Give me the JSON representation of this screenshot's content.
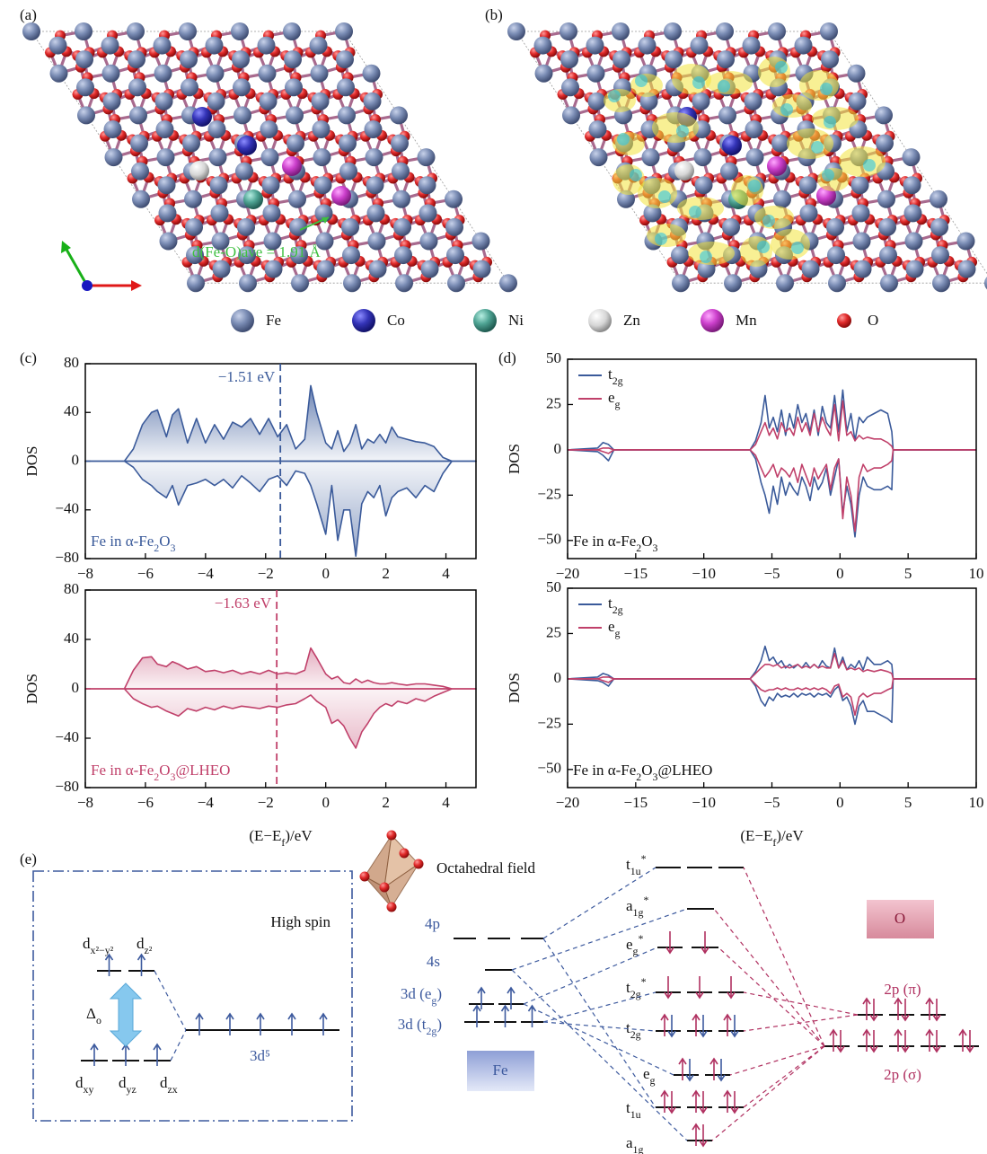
{
  "panel_labels": [
    "(a)",
    "(b)",
    "(c)",
    "(d)",
    "(e)"
  ],
  "structure": {
    "annotation": "d(Fe-O)ave = 1.91 Å",
    "legend": [
      "Fe",
      "Co",
      "Ni",
      "Zn",
      "Mn",
      "O"
    ]
  },
  "chart_data": [
    {
      "type": "area",
      "ylabel": "DOS",
      "annotation": "Fe in α-Fe2O3",
      "marker": {
        "value": -1.51,
        "label": "−1.51 eV"
      },
      "xlim": [
        -8,
        5
      ],
      "ylim": [
        -80,
        80
      ],
      "xticks": [
        {
          "value": -8,
          "label": "−8"
        },
        {
          "value": -6,
          "label": "−6"
        },
        {
          "value": -4,
          "label": "−4"
        },
        {
          "value": -2,
          "label": "−2"
        },
        0,
        2,
        4
      ],
      "yticks": [
        {
          "value": -80,
          "label": "−80"
        },
        {
          "value": -40,
          "label": "−40"
        },
        0,
        40,
        80
      ],
      "x": [
        -8,
        -6.7,
        -6.4,
        -6.1,
        -5.8,
        -5.6,
        -5.3,
        -5.1,
        -4.9,
        -4.6,
        -4.3,
        -4,
        -3.7,
        -3.4,
        -3.1,
        -2.8,
        -2.5,
        -2.2,
        -1.9,
        -1.6,
        -1.3,
        -1,
        -0.7,
        -0.5,
        -0.3,
        0,
        0.2,
        0.4,
        0.6,
        0.8,
        1,
        1.2,
        1.4,
        1.6,
        1.8,
        2,
        2.2,
        2.4,
        2.7,
        3,
        3.3,
        3.6,
        3.9,
        4.2,
        5
      ],
      "series": [
        {
          "color": "#3a5a9a",
          "values": [
            0,
            0,
            10,
            30,
            40,
            42,
            20,
            38,
            43,
            15,
            35,
            15,
            30,
            18,
            32,
            28,
            35,
            22,
            35,
            20,
            30,
            10,
            18,
            62,
            40,
            15,
            10,
            25,
            8,
            15,
            30,
            10,
            18,
            15,
            22,
            15,
            28,
            20,
            18,
            16,
            15,
            12,
            3,
            0,
            0
          ]
        },
        {
          "color": "#3a5a9a",
          "values": [
            0,
            0,
            -5,
            -15,
            -20,
            -25,
            -30,
            -20,
            -36,
            -20,
            -18,
            -15,
            -20,
            -15,
            -22,
            -12,
            -18,
            -25,
            -15,
            -12,
            -20,
            -8,
            -10,
            -20,
            -35,
            -60,
            -20,
            -65,
            -40,
            -40,
            -78,
            -35,
            -25,
            -30,
            -20,
            -45,
            -30,
            -25,
            -22,
            -30,
            -20,
            -25,
            -10,
            0,
            0
          ]
        }
      ]
    },
    {
      "type": "area",
      "ylabel": "DOS",
      "xlabel": "(E−Ef)/eV",
      "annotation": "Fe in α-Fe2O3@LHEO",
      "marker": {
        "value": -1.63,
        "label": "−1.63 eV"
      },
      "xlim": [
        -8,
        5
      ],
      "ylim": [
        -80,
        80
      ],
      "xticks": [
        {
          "value": -8,
          "label": "−8"
        },
        {
          "value": -6,
          "label": "−6"
        },
        {
          "value": -4,
          "label": "−4"
        },
        {
          "value": -2,
          "label": "−2"
        },
        0,
        2,
        4
      ],
      "yticks": [
        {
          "value": -80,
          "label": "−80"
        },
        {
          "value": -40,
          "label": "−40"
        },
        0,
        40,
        80
      ],
      "x": [
        -8,
        -6.7,
        -6.4,
        -6.1,
        -5.8,
        -5.6,
        -5.3,
        -5.1,
        -4.9,
        -4.6,
        -4.3,
        -4,
        -3.7,
        -3.4,
        -3.1,
        -2.8,
        -2.5,
        -2.2,
        -1.9,
        -1.6,
        -1.3,
        -1,
        -0.7,
        -0.5,
        -0.3,
        0,
        0.2,
        0.4,
        0.6,
        0.8,
        1,
        1.2,
        1.4,
        1.6,
        1.8,
        2,
        2.2,
        2.4,
        2.7,
        3,
        3.3,
        3.6,
        3.9,
        4.2,
        5
      ],
      "series": [
        {
          "color": "#c0406a",
          "values": [
            0,
            0,
            15,
            25,
            26,
            20,
            18,
            22,
            20,
            16,
            18,
            14,
            15,
            13,
            15,
            12,
            14,
            12,
            15,
            12,
            13,
            12,
            15,
            33,
            25,
            12,
            8,
            10,
            5,
            4,
            8,
            5,
            7,
            5,
            4,
            4,
            5,
            4,
            3,
            4,
            4,
            3,
            2,
            0,
            0
          ]
        },
        {
          "color": "#c0406a",
          "values": [
            0,
            0,
            -8,
            -12,
            -15,
            -14,
            -18,
            -20,
            -22,
            -16,
            -18,
            -15,
            -17,
            -14,
            -16,
            -14,
            -15,
            -16,
            -14,
            -15,
            -13,
            -12,
            -8,
            -5,
            -10,
            -15,
            -28,
            -25,
            -30,
            -40,
            -48,
            -35,
            -28,
            -20,
            -15,
            -12,
            -14,
            -10,
            -12,
            -8,
            -10,
            -6,
            -3,
            0,
            0
          ]
        }
      ]
    },
    {
      "type": "line",
      "ylabel": "DOS",
      "annotation": "Fe in α-Fe2O3",
      "legend": "upper left",
      "xlim": [
        -20,
        10
      ],
      "ylim": [
        -60,
        50
      ],
      "xticks": [
        {
          "value": -20,
          "label": "−20"
        },
        {
          "value": -15,
          "label": "−15"
        },
        {
          "value": -10,
          "label": "−10"
        },
        {
          "value": -5,
          "label": "−5"
        },
        0,
        5,
        10
      ],
      "yticks": [
        {
          "value": -50,
          "label": "−50"
        },
        {
          "value": -25,
          "label": "−25"
        },
        0,
        25,
        50
      ],
      "x": [
        -20,
        -17.8,
        -17.4,
        -17,
        -16.6,
        -16.2,
        -10,
        -6.6,
        -6.2,
        -5.8,
        -5.5,
        -5.2,
        -4.9,
        -4.6,
        -4.3,
        -4,
        -3.7,
        -3.4,
        -3.1,
        -2.8,
        -2.5,
        -2.2,
        -1.9,
        -1.6,
        -1.3,
        -1,
        -0.7,
        -0.4,
        -0.1,
        0.2,
        0.5,
        0.8,
        1.1,
        1.4,
        1.7,
        2,
        2.5,
        3,
        3.5,
        3.8,
        3.9,
        10
      ],
      "series": [
        {
          "name": "t2g",
          "color": "#3a5a9a",
          "values": [
            0,
            1,
            4,
            3,
            0,
            0,
            0,
            0,
            5,
            15,
            30,
            12,
            18,
            10,
            22,
            8,
            20,
            12,
            25,
            15,
            20,
            10,
            22,
            8,
            24,
            15,
            12,
            30,
            10,
            33,
            10,
            20,
            5,
            18,
            15,
            18,
            20,
            22,
            20,
            10,
            0,
            0
          ]
        },
        {
          "color": "#3a5a9a",
          "values": [
            0,
            -1,
            -3,
            -6,
            0,
            0,
            0,
            0,
            -5,
            -18,
            -25,
            -35,
            -20,
            -30,
            -15,
            -25,
            -18,
            -22,
            -25,
            -15,
            -20,
            -28,
            -15,
            -22,
            -18,
            -10,
            -25,
            -15,
            -5,
            -35,
            -20,
            -30,
            -48,
            -25,
            -15,
            -20,
            -22,
            -22,
            -20,
            -22,
            0,
            0
          ]
        },
        {
          "name": "eg",
          "color": "#c0406a",
          "values": [
            0,
            0,
            1,
            1,
            0,
            0,
            0,
            0,
            3,
            10,
            15,
            8,
            12,
            6,
            15,
            10,
            12,
            8,
            18,
            10,
            15,
            8,
            20,
            10,
            18,
            12,
            8,
            25,
            5,
            27,
            8,
            10,
            5,
            8,
            6,
            7,
            6,
            6,
            4,
            2,
            0,
            0
          ]
        },
        {
          "color": "#c0406a",
          "values": [
            0,
            0,
            -1,
            -2,
            0,
            0,
            0,
            0,
            -3,
            -10,
            -15,
            -12,
            -8,
            -15,
            -10,
            -12,
            -15,
            -10,
            -18,
            -8,
            -14,
            -20,
            -10,
            -16,
            -12,
            -8,
            -22,
            -10,
            -5,
            -38,
            -15,
            -25,
            -45,
            -15,
            -8,
            -12,
            -10,
            -10,
            -8,
            -6,
            0,
            0
          ]
        }
      ]
    },
    {
      "type": "line",
      "ylabel": "DOS",
      "xlabel": "(E−Ef)/eV",
      "annotation": "Fe in α-Fe2O3@LHEO",
      "legend": "upper left",
      "xlim": [
        -20,
        10
      ],
      "ylim": [
        -60,
        50
      ],
      "xticks": [
        {
          "value": -20,
          "label": "−20"
        },
        {
          "value": -15,
          "label": "−15"
        },
        {
          "value": -10,
          "label": "−10"
        },
        {
          "value": -5,
          "label": "−5"
        },
        0,
        5,
        10
      ],
      "yticks": [
        {
          "value": -50,
          "label": "−50"
        },
        {
          "value": -25,
          "label": "−25"
        },
        0,
        25,
        50
      ],
      "x": [
        -20,
        -17.8,
        -17.4,
        -17,
        -16.6,
        -16.2,
        -10,
        -6.6,
        -6.2,
        -5.8,
        -5.5,
        -5.2,
        -4.9,
        -4.6,
        -4.3,
        -4,
        -3.7,
        -3.4,
        -3.1,
        -2.8,
        -2.5,
        -2.2,
        -1.9,
        -1.6,
        -1.3,
        -1,
        -0.7,
        -0.4,
        -0.1,
        0.2,
        0.5,
        0.8,
        1.1,
        1.4,
        1.7,
        2,
        2.5,
        3,
        3.5,
        3.8,
        3.9,
        10
      ],
      "series": [
        {
          "name": "t2g",
          "color": "#3a5a9a",
          "values": [
            0,
            1,
            3,
            2,
            0,
            0,
            0,
            0,
            4,
            10,
            18,
            10,
            12,
            8,
            10,
            6,
            8,
            6,
            8,
            6,
            9,
            6,
            8,
            6,
            10,
            7,
            6,
            17,
            6,
            12,
            5,
            8,
            6,
            10,
            5,
            12,
            8,
            8,
            10,
            8,
            0,
            0
          ]
        },
        {
          "color": "#3a5a9a",
          "values": [
            0,
            -1,
            -2,
            -4,
            0,
            0,
            0,
            0,
            -4,
            -12,
            -15,
            -10,
            -12,
            -8,
            -10,
            -9,
            -10,
            -8,
            -10,
            -8,
            -9,
            -8,
            -10,
            -8,
            -9,
            -8,
            -10,
            -6,
            -4,
            -12,
            -10,
            -15,
            -25,
            -15,
            -12,
            -18,
            -18,
            -20,
            -22,
            -24,
            0,
            0
          ]
        },
        {
          "name": "eg",
          "color": "#c0406a",
          "values": [
            0,
            0,
            1,
            1,
            0,
            0,
            0,
            0,
            3,
            6,
            8,
            8,
            7,
            8,
            6,
            7,
            6,
            7,
            8,
            6,
            7,
            6,
            8,
            6,
            7,
            6,
            6,
            14,
            6,
            10,
            5,
            6,
            5,
            6,
            4,
            5,
            4,
            5,
            4,
            3,
            0,
            0
          ]
        },
        {
          "color": "#c0406a",
          "values": [
            0,
            0,
            -1,
            -2,
            0,
            0,
            0,
            0,
            -3,
            -6,
            -7,
            -6,
            -6,
            -5,
            -6,
            -5,
            -6,
            -6,
            -5,
            -6,
            -5,
            -6,
            -5,
            -6,
            -5,
            -6,
            -8,
            -4,
            -3,
            -10,
            -8,
            -10,
            -20,
            -10,
            -8,
            -10,
            -8,
            -8,
            -6,
            -5,
            0,
            0
          ]
        }
      ]
    }
  ],
  "diagram": {
    "field": "Octahedral field",
    "spin": "High spin",
    "eg_orbitals": [
      "dx²−y²",
      "dz²"
    ],
    "t2g_orbitals": [
      "dxy",
      "dyz",
      "dzx"
    ],
    "splitting": "Δo",
    "free_ion": "3d⁵",
    "fe_levels": [
      "4p",
      "4s",
      "3d (eg)",
      "3d (t2g)"
    ],
    "fe": "Fe",
    "mo_levels": [
      "t1u*",
      "a1g*",
      "eg*",
      "t2g*",
      "t2g",
      "eg",
      "t1u",
      "a1g"
    ],
    "o": "O",
    "o_levels": [
      "2p (π)",
      "2p (σ)"
    ]
  }
}
